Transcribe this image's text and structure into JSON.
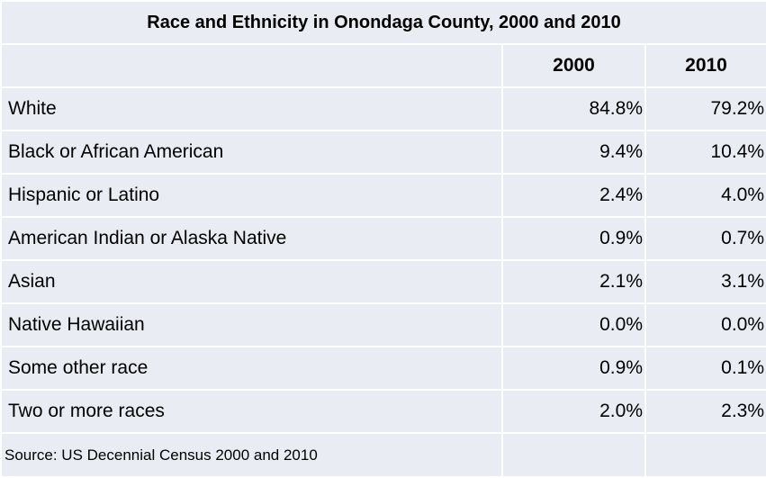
{
  "chart_data": {
    "type": "table",
    "title": "Race and Ethnicity in Onondaga County, 2000 and 2010",
    "columns": [
      "",
      "2000",
      "2010"
    ],
    "rows": [
      {
        "label": "White",
        "v2000": "84.8%",
        "v2010": "79.2%"
      },
      {
        "label": "Black or African American",
        "v2000": "9.4%",
        "v2010": "10.4%"
      },
      {
        "label": "Hispanic or Latino",
        "v2000": "2.4%",
        "v2010": "4.0%"
      },
      {
        "label": "American Indian or Alaska Native",
        "v2000": "0.9%",
        "v2010": "0.7%"
      },
      {
        "label": "Asian",
        "v2000": "2.1%",
        "v2010": "3.1%"
      },
      {
        "label": "Native Hawaiian",
        "v2000": "0.0%",
        "v2010": "0.0%"
      },
      {
        "label": "Some other race",
        "v2000": "0.9%",
        "v2010": "0.1%"
      },
      {
        "label": "Two or more races",
        "v2000": "2.0%",
        "v2010": "2.3%"
      }
    ],
    "source": "Source: US Decennial Census 2000 and 2010"
  }
}
